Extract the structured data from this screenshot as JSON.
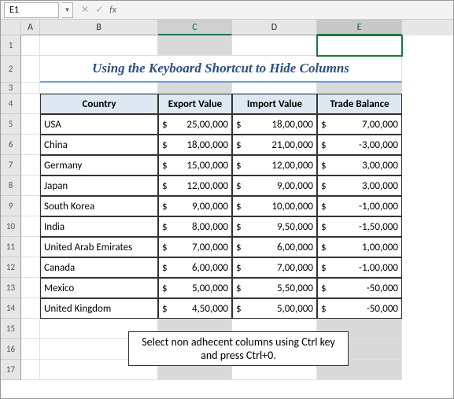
{
  "namebox": {
    "value": "E1",
    "fx_label": "fx"
  },
  "columns": {
    "A": "A",
    "B": "B",
    "C": "C",
    "D": "D",
    "E": "E"
  },
  "title": "Using the Keyboard Shortcut to Hide Columns",
  "headers": {
    "country": "Country",
    "export": "Export Value",
    "import": "Import Value",
    "balance": "Trade Balance"
  },
  "rows": [
    {
      "country": "USA",
      "export": "25,00,000",
      "import": "18,00,000",
      "balance": "7,00,000"
    },
    {
      "country": "China",
      "export": "18,00,000",
      "import": "21,00,000",
      "balance": "-3,00,000"
    },
    {
      "country": "Germany",
      "export": "15,00,000",
      "import": "12,00,000",
      "balance": "3,00,000"
    },
    {
      "country": "Japan",
      "export": "12,00,000",
      "import": "9,00,000",
      "balance": "3,00,000"
    },
    {
      "country": "South Korea",
      "export": "9,00,000",
      "import": "10,00,000",
      "balance": "-1,00,000"
    },
    {
      "country": "India",
      "export": "8,00,000",
      "import": "9,50,000",
      "balance": "-1,50,000"
    },
    {
      "country": "United Arab Emirates",
      "export": "7,00,000",
      "import": "6,00,000",
      "balance": "1,00,000"
    },
    {
      "country": "Canada",
      "export": "6,00,000",
      "import": "7,00,000",
      "balance": "-1,00,000"
    },
    {
      "country": "Mexico",
      "export": "5,00,000",
      "import": "5,50,000",
      "balance": "-50,000"
    },
    {
      "country": "United Kingdom",
      "export": "4,50,000",
      "import": "5,00,000",
      "balance": "-50,000"
    }
  ],
  "row_numbers": [
    "1",
    "2",
    "3",
    "4",
    "5",
    "6",
    "7",
    "8",
    "9",
    "10",
    "11",
    "12",
    "13",
    "14",
    "15",
    "16",
    "17"
  ],
  "callout": "Select non adhecent columns using Ctrl key and press Ctrl+0.",
  "currency": "$",
  "colors": {
    "accent": "#217346",
    "header_bg": "#dde8f3",
    "title_color": "#2a5080",
    "sel_bg": "#d9d9d9"
  }
}
